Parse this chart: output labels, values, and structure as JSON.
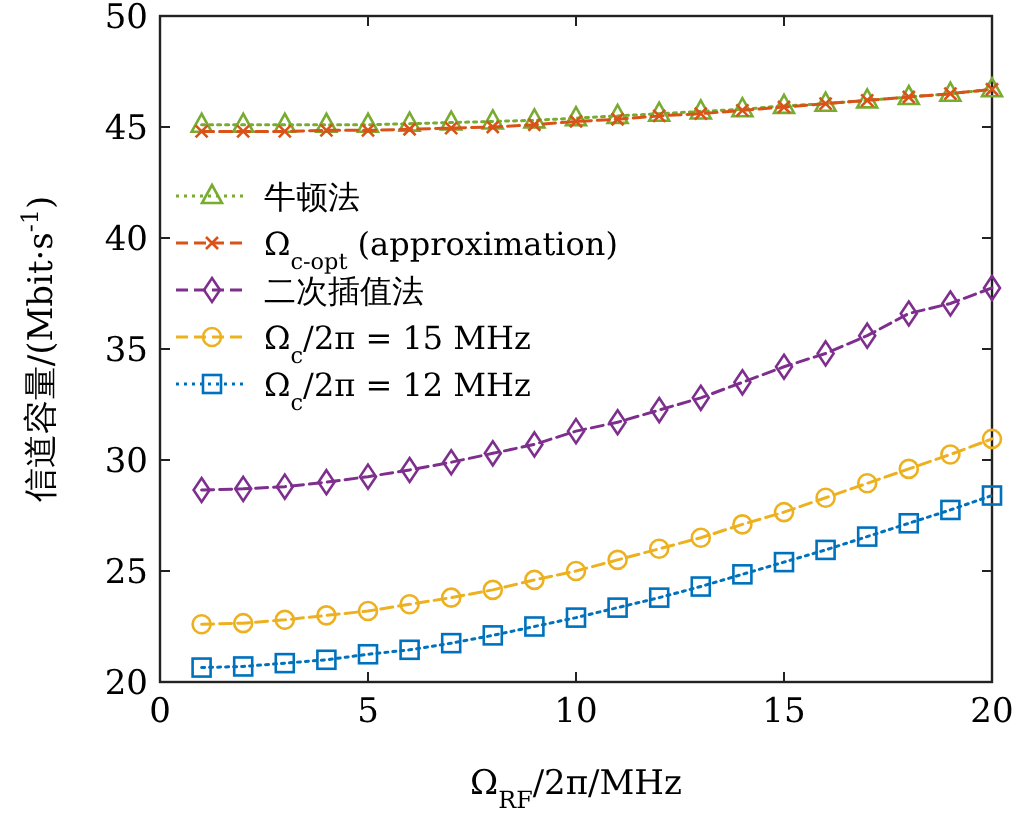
{
  "chart_data": {
    "type": "line",
    "xlabel": "Ω$_{RF}$/2π/MHz",
    "ylabel": "信道容量/(Mbit·s$^{-1}$)",
    "x": [
      1,
      2,
      3,
      4,
      5,
      6,
      7,
      8,
      9,
      10,
      11,
      12,
      13,
      14,
      15,
      16,
      17,
      18,
      19,
      20
    ],
    "xlim": [
      0,
      20
    ],
    "ylim": [
      20,
      50
    ],
    "xticks": [
      0,
      5,
      10,
      15,
      20
    ],
    "yticks": [
      20,
      25,
      30,
      35,
      40,
      45,
      50
    ],
    "legend": "top left",
    "series": [
      {
        "name": "牛顿法",
        "color": "#77ac30",
        "marker": "triangle",
        "line_style": "dotted",
        "values": [
          45.1,
          45.1,
          45.1,
          45.1,
          45.1,
          45.15,
          45.2,
          45.25,
          45.3,
          45.4,
          45.5,
          45.6,
          45.7,
          45.8,
          45.95,
          46.05,
          46.2,
          46.35,
          46.5,
          46.7
        ]
      },
      {
        "name": "Ω$_{c-opt}$ (approximation)",
        "color": "#d95319",
        "marker": "cross",
        "line_style": "dashed",
        "values": [
          44.8,
          44.8,
          44.8,
          44.85,
          44.85,
          44.9,
          44.95,
          45.0,
          45.1,
          45.25,
          45.35,
          45.5,
          45.6,
          45.75,
          45.9,
          46.05,
          46.2,
          46.35,
          46.5,
          46.7
        ]
      },
      {
        "name": "二次插值法",
        "color": "#7e2f8e",
        "marker": "diamond",
        "line_style": "dashed",
        "values": [
          28.65,
          28.7,
          28.8,
          29.0,
          29.25,
          29.55,
          29.9,
          30.3,
          30.7,
          31.3,
          31.7,
          32.25,
          32.8,
          33.5,
          34.2,
          34.8,
          35.6,
          36.6,
          37.05,
          37.75
        ]
      },
      {
        "name": "Ω$_{c}$/2π = 15 MHz",
        "color": "#edb120",
        "marker": "circle",
        "line_style": "dashed",
        "values": [
          22.6,
          22.65,
          22.8,
          23.0,
          23.2,
          23.5,
          23.8,
          24.15,
          24.6,
          25.0,
          25.5,
          26.0,
          26.5,
          27.1,
          27.65,
          28.3,
          28.95,
          29.6,
          30.25,
          30.95
        ]
      },
      {
        "name": "Ω$_{c}$/2π = 12 MHz",
        "color": "#0072bd",
        "marker": "square",
        "line_style": "dotted",
        "values": [
          20.65,
          20.7,
          20.85,
          21.0,
          21.25,
          21.45,
          21.75,
          22.1,
          22.5,
          22.9,
          23.35,
          23.8,
          24.3,
          24.85,
          25.4,
          25.95,
          26.55,
          27.15,
          27.75,
          28.4
        ]
      }
    ]
  }
}
